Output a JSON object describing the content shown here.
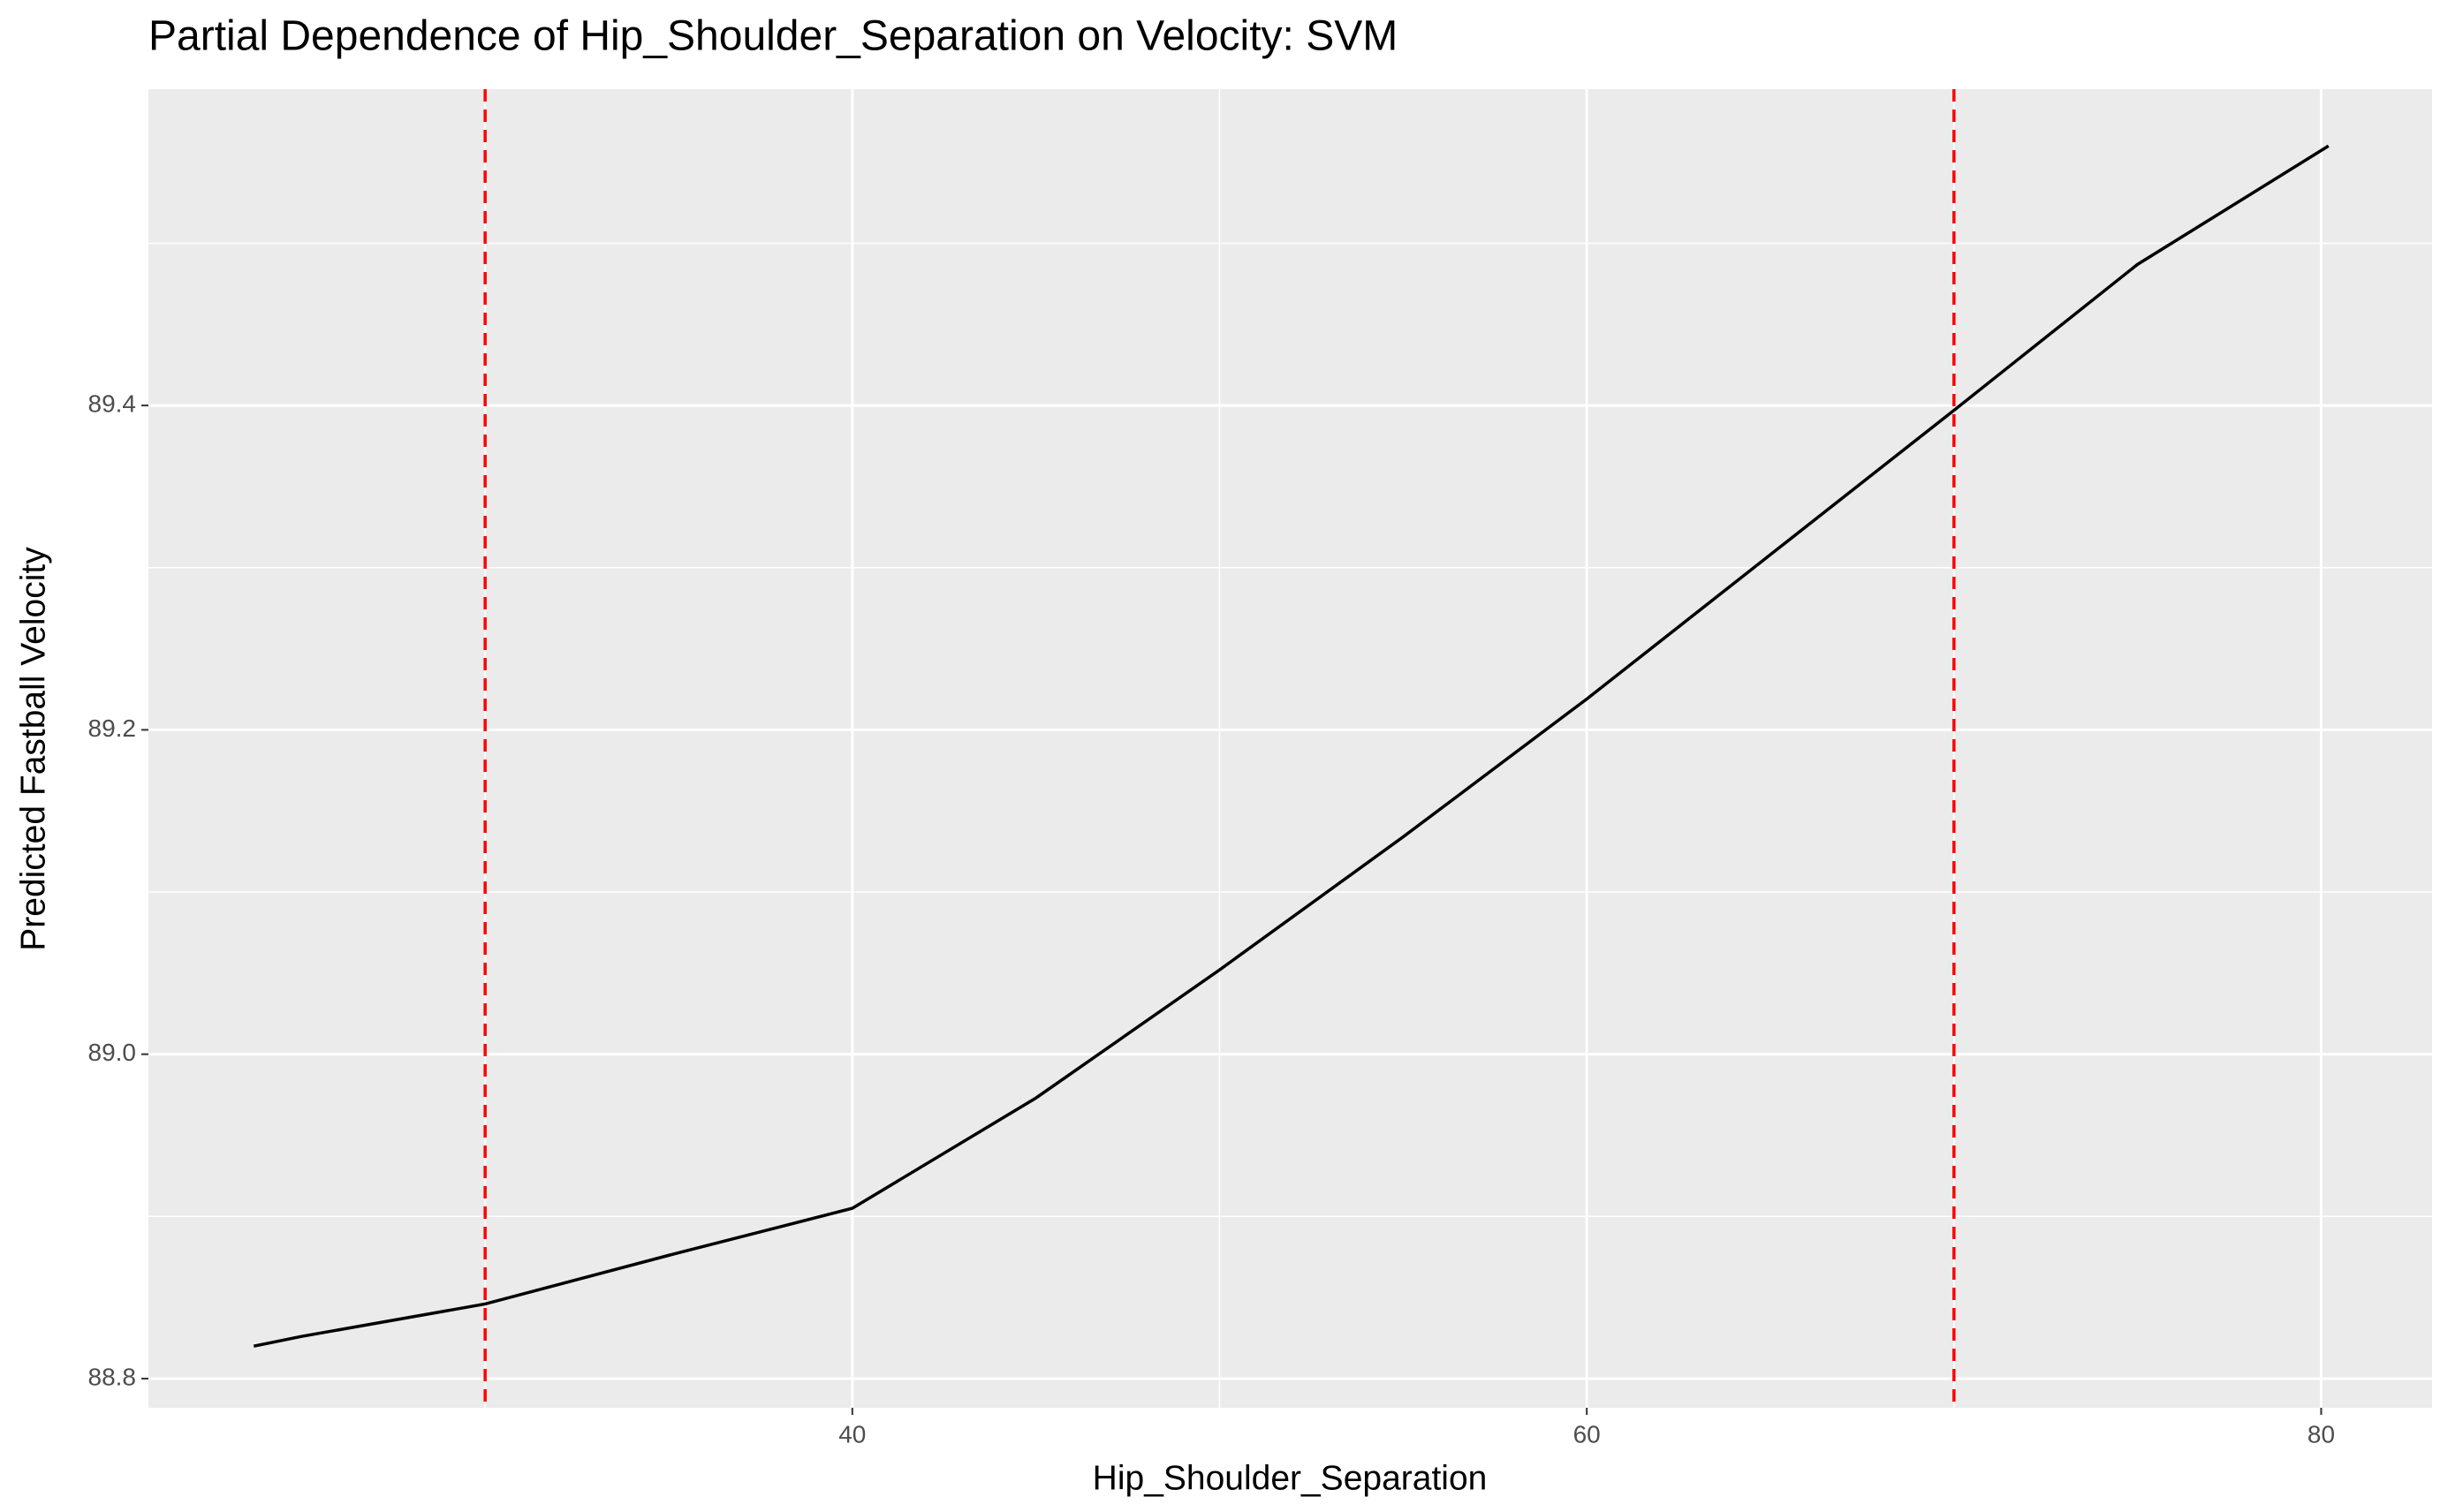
{
  "chart_data": {
    "type": "line",
    "title": "Partial Dependence of Hip_Shoulder_Separation on Velocity: SVM",
    "x_label": "Hip_Shoulder_Separation",
    "y_label": "Predicted Fastball Velocity",
    "x": [
      23.7,
      25,
      30,
      35,
      40,
      45,
      50,
      55,
      60,
      65,
      70,
      75,
      80.2
    ],
    "series": [
      {
        "color": "#000000",
        "values": [
          88.82,
          88.826,
          88.846,
          88.876,
          88.905,
          88.973,
          89.052,
          89.134,
          89.219,
          89.308,
          89.397,
          89.487,
          89.56
        ]
      }
    ],
    "xlim": [
      20.83,
      83.02
    ],
    "ylim": [
      88.782,
      89.595
    ],
    "xticks": [
      40,
      60,
      80
    ],
    "yticks": [
      88.8,
      {
        "value": 89,
        "label": "89.0"
      },
      89.2,
      89.4
    ],
    "x_minor_ticks": [
      30,
      50,
      70
    ],
    "y_minor_ticks": [
      88.9,
      89.1,
      89.3,
      89.5
    ],
    "vlines": {
      "values": [
        30,
        70
      ],
      "color": "#ff0000"
    },
    "grid": true
  }
}
